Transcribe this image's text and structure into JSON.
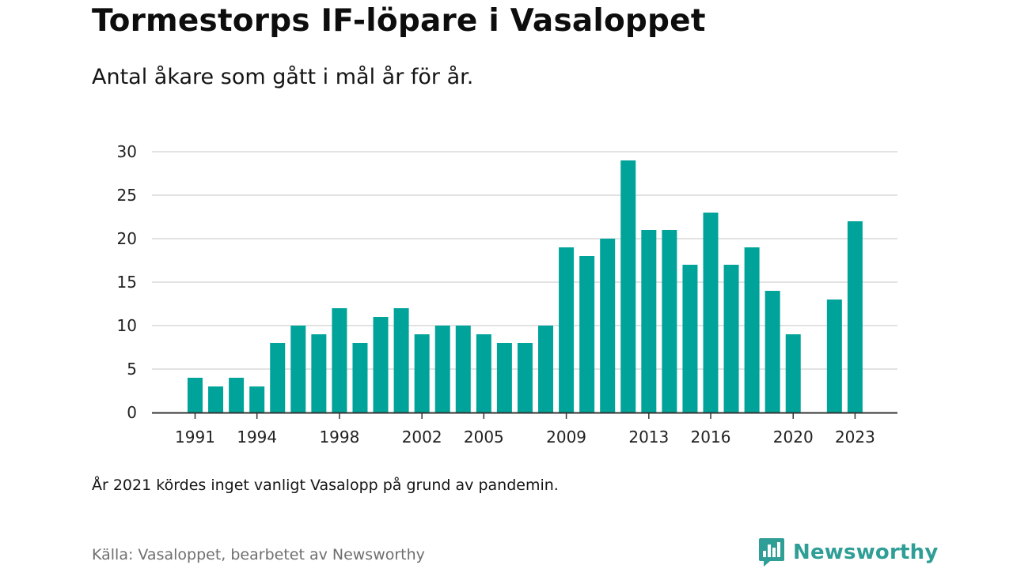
{
  "title": "Tormestorps IF-löpare i Vasaloppet",
  "subtitle": "Antal åkare som gått i mål år för år.",
  "note": "År 2021 kördes inget vanligt Vasalopp på grund av pandemin.",
  "source": "Källa: Vasaloppet, bearbetet av Newsworthy",
  "brand": "Newsworthy",
  "colors": {
    "bar": "#00a39a",
    "grid": "#d9d9d9",
    "axis": "#333333",
    "brand": "#2f9e96"
  },
  "icons": {
    "brand_logo": "bar-chart-speech-bubble-icon"
  },
  "chart_data": {
    "type": "bar",
    "categories": [
      1991,
      1992,
      1993,
      1994,
      1995,
      1996,
      1997,
      1998,
      1999,
      2000,
      2001,
      2002,
      2003,
      2004,
      2005,
      2006,
      2007,
      2008,
      2009,
      2010,
      2011,
      2012,
      2013,
      2014,
      2015,
      2016,
      2017,
      2018,
      2019,
      2020,
      2021,
      2022,
      2023
    ],
    "values": [
      4,
      3,
      4,
      3,
      8,
      10,
      9,
      12,
      8,
      11,
      12,
      9,
      10,
      10,
      9,
      8,
      8,
      10,
      19,
      18,
      20,
      29,
      21,
      21,
      17,
      23,
      17,
      19,
      14,
      9,
      null,
      13,
      22
    ],
    "x_tick_labels": [
      "1991",
      "1994",
      "1998",
      "2002",
      "2005",
      "2009",
      "2013",
      "2016",
      "2020",
      "2023"
    ],
    "y_ticks": [
      0,
      5,
      10,
      15,
      20,
      25,
      30
    ],
    "ylim": [
      0,
      30
    ],
    "xlabel": "",
    "ylabel": "",
    "grid": true,
    "legend": "none"
  }
}
